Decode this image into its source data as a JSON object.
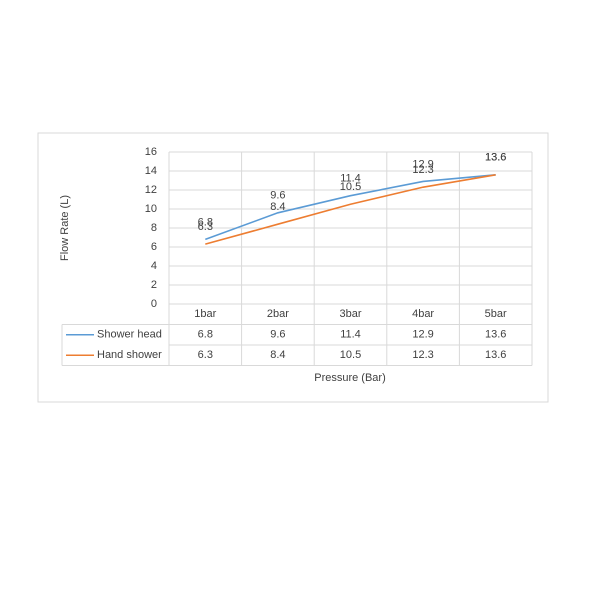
{
  "chart_data": {
    "type": "line",
    "x_label": "Pressure (Bar)",
    "y_label": "Flow Rate (L)",
    "categories": [
      "1bar",
      "2bar",
      "3bar",
      "4bar",
      "5bar"
    ],
    "series": [
      {
        "name": "Shower head",
        "color": "#5b9bd5",
        "values": [
          6.8,
          9.6,
          11.4,
          12.9,
          13.6
        ]
      },
      {
        "name": "Hand shower",
        "color": "#ed7d31",
        "values": [
          6.3,
          8.4,
          10.5,
          12.3,
          13.6
        ]
      }
    ],
    "ylim": [
      0,
      16
    ],
    "yticks": [
      0,
      2,
      4,
      6,
      8,
      10,
      12,
      14,
      16
    ],
    "grid": true,
    "data_table": true
  }
}
